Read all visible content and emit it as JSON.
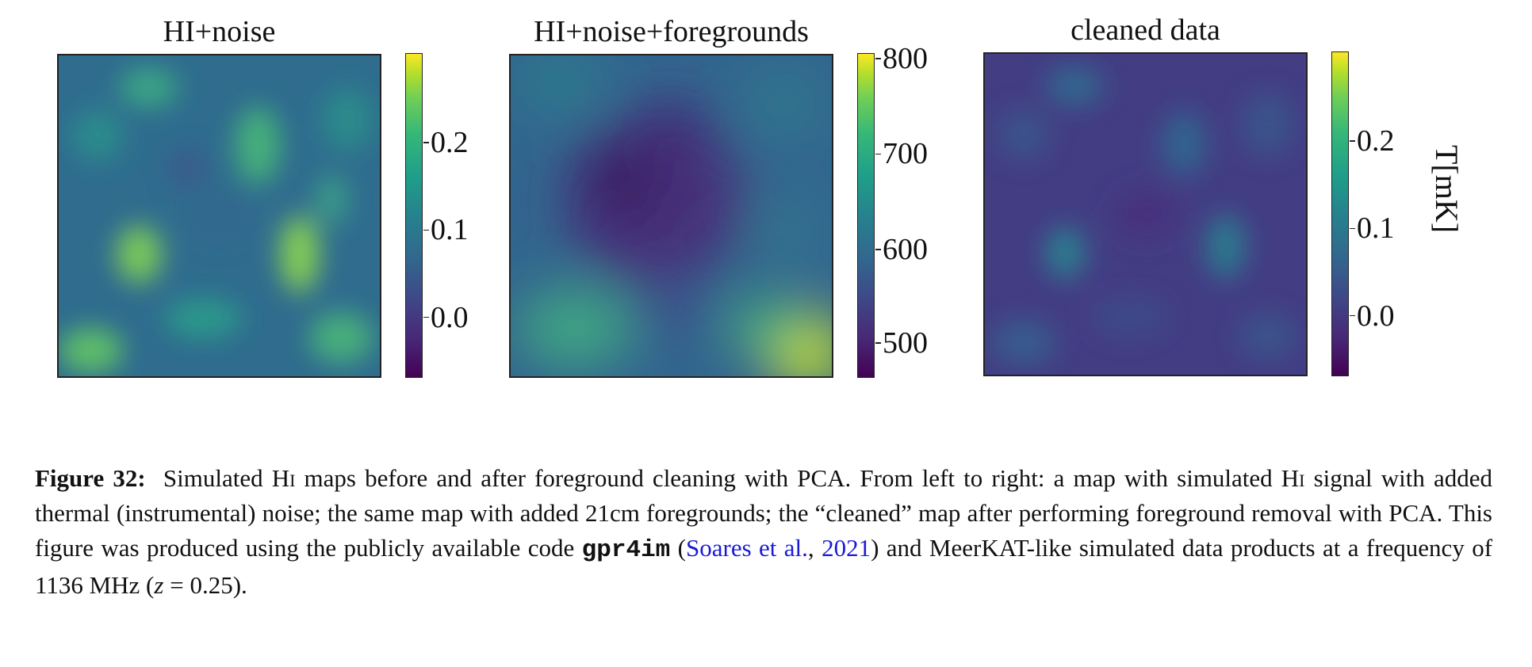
{
  "panels": [
    {
      "title": "HI+noise",
      "ticks": [
        "0.2",
        "0.1",
        "0.0"
      ],
      "tick_values": [
        0.2,
        0.1,
        0.0
      ],
      "cbar_range": [
        -0.09,
        0.28
      ]
    },
    {
      "title": "HI+noise+foregrounds",
      "ticks": [
        "800",
        "700",
        "600",
        "500"
      ],
      "tick_values": [
        800,
        700,
        600,
        500
      ],
      "cbar_range": [
        465,
        805
      ]
    },
    {
      "title": "cleaned data",
      "ticks": [
        "0.2",
        "0.1",
        "0.0"
      ],
      "tick_values": [
        0.2,
        0.1,
        0.0
      ],
      "cbar_range": [
        -0.09,
        0.28
      ]
    }
  ],
  "unit_label": "T[mK]",
  "caption": {
    "label": "Figure 32:",
    "part1": "Simulated H",
    "hi_sc": "i",
    "part2": " maps before and after foreground cleaning with PCA. From left to right: a map with simulated H",
    "hi_sc2": "i",
    "part3": " signal with added thermal (instrumental) noise; the same map with added 21cm foregrounds; the “cleaned” map after performing foreground removal with PCA. This figure was produced using the publicly available code ",
    "code": "gpr4im",
    "part4a": " (",
    "cite_authors": "Soares et al.",
    "cite_sep": ", ",
    "cite_year": "2021",
    "part4b": ") and MeerKAT-like simulated data products at a frequency of 1136 MHz (",
    "z_var": "z",
    "z_val": " = 0.25)."
  },
  "colors": {
    "colormap": "viridis",
    "link": "#1a1ad6"
  }
}
